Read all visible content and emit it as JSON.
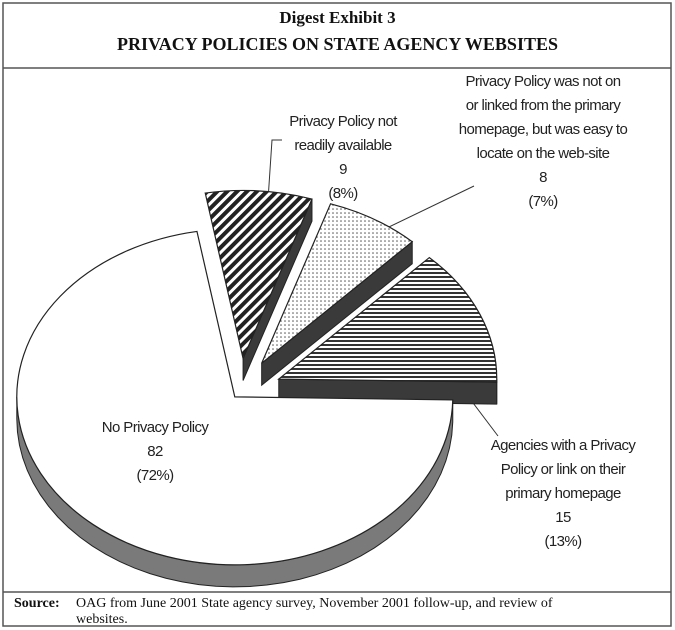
{
  "chart_data": {
    "type": "pie",
    "title": "Digest Exhibit 3",
    "subtitle": "PRIVACY POLICIES ON STATE AGENCY WEBSITES",
    "categories": [
      "Privacy Policy not readily available",
      "Privacy Policy was not on or linked from the primary homepage, but was easy to locate on the web-site",
      "Agencies with a Privacy Policy or link on their primary homepage",
      "No Privacy Policy"
    ],
    "values": [
      9,
      8,
      15,
      82
    ],
    "percentages": [
      8,
      7,
      13,
      72
    ],
    "percentage_labels": [
      "(8%)",
      "(7%)",
      "(13%)",
      "(72%)"
    ],
    "patterns": [
      "diagonal",
      "dots",
      "horizontal",
      "none"
    ],
    "source_label": "Source:",
    "source": "OAG from June 2001 State agency survey, November 2001 follow-up, and review of websites."
  }
}
